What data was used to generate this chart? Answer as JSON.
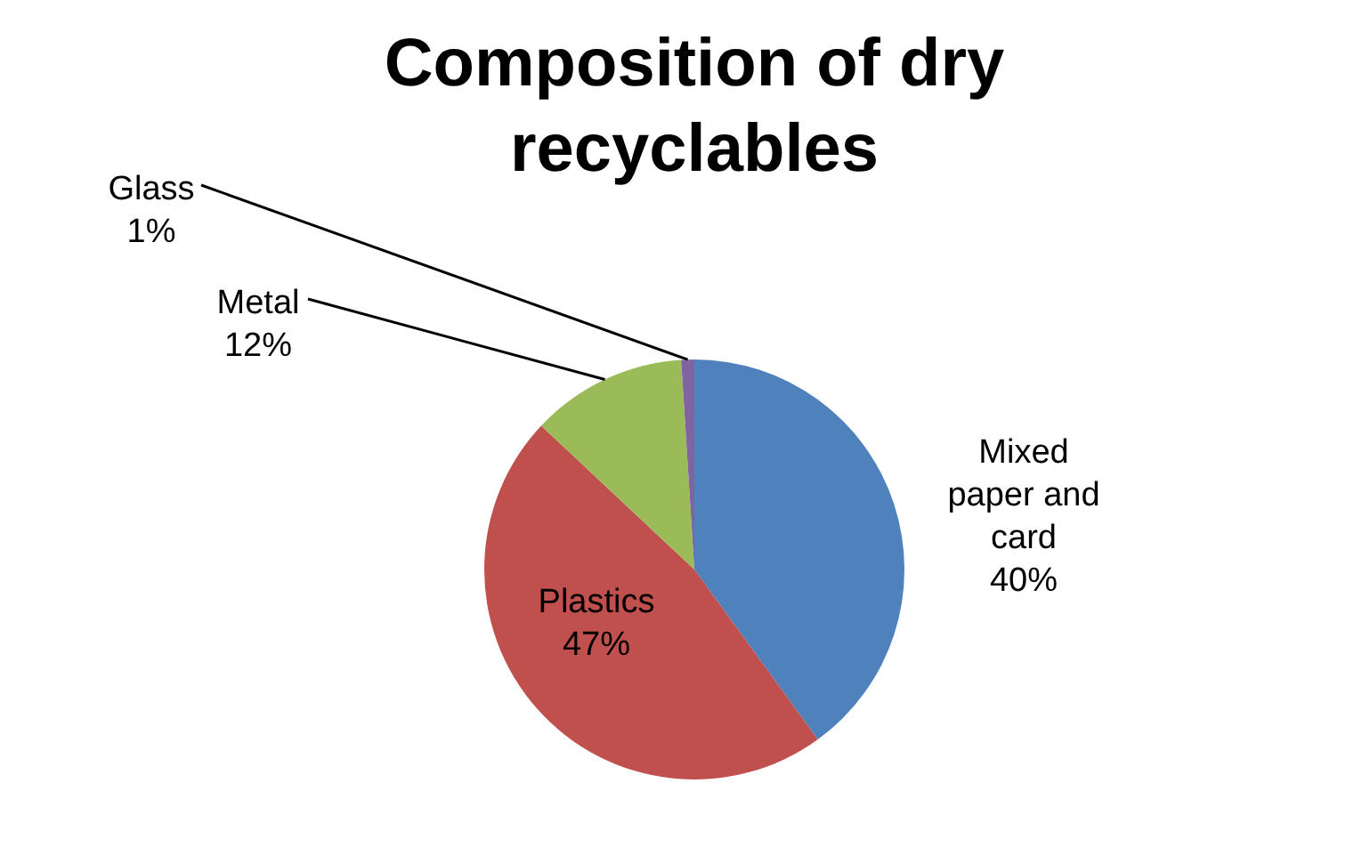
{
  "chart_data": {
    "type": "pie",
    "title": "Composition of dry recyclables",
    "categories": [
      "Mixed paper and card",
      "Plastics",
      "Metal",
      "Glass"
    ],
    "values": [
      40,
      47,
      12,
      1
    ],
    "colors": [
      "#4f81bd",
      "#c0504d",
      "#9bbb59",
      "#8064a2"
    ],
    "value_labels": [
      "40%",
      "47%",
      "12%",
      "1%"
    ],
    "legend": false
  }
}
